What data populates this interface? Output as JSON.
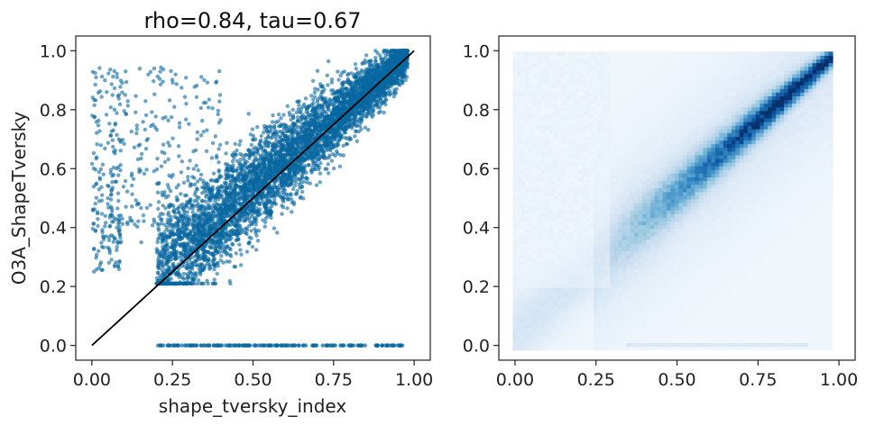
{
  "chart_data": [
    {
      "type": "scatter",
      "title": "rho=0.84, tau=0.67",
      "xlabel": "shape_tversky_index",
      "ylabel": "O3A_ShapeTversky",
      "xlim": [
        -0.05,
        1.05
      ],
      "ylim": [
        -0.05,
        1.05
      ],
      "xticks": [
        "0.00",
        "0.25",
        "0.50",
        "0.75",
        "1.00"
      ],
      "yticks": [
        "0.0",
        "0.2",
        "0.4",
        "0.6",
        "0.8",
        "1.0"
      ],
      "grid": false,
      "point_color": "#0868a0",
      "reference_line": {
        "x": [
          0,
          1
        ],
        "y": [
          0,
          1
        ],
        "color": "#000000"
      },
      "description_points": "dense cloud along diagonal from (0.2,0.25) to (1,1), scattered points near x=0 with y 0.25-0.95, and a band at y=0 for x 0.2-0.97"
    },
    {
      "type": "heatmap",
      "title": "",
      "xlabel": "",
      "ylabel": "",
      "xlim": [
        -0.05,
        1.05
      ],
      "ylim": [
        -0.05,
        1.05
      ],
      "xticks": [
        "0.00",
        "0.25",
        "0.50",
        "0.75",
        "1.00"
      ],
      "yticks": [
        "0.0",
        "0.2",
        "0.4",
        "0.6",
        "0.8",
        "1.0"
      ],
      "colormap": "Blues",
      "grid": false
    }
  ]
}
